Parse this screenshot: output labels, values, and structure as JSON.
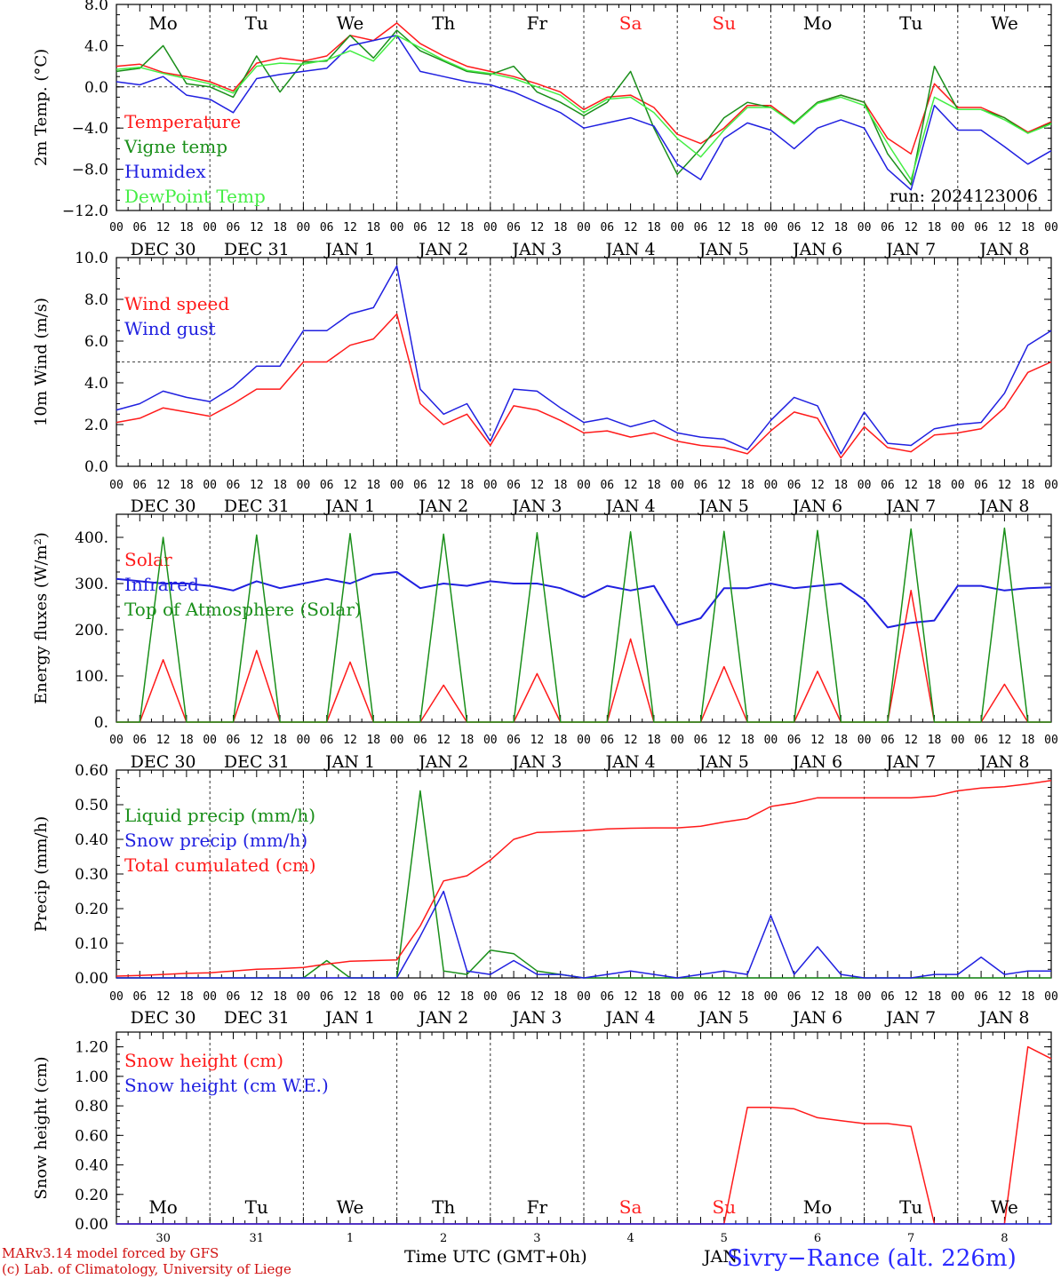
{
  "meteogram": {
    "station": "Sivry−Rance (alt. 226m)",
    "run_label": "run: 2024123006",
    "footer_line1": "MARv3.14 model forced by GFS",
    "footer_line2": "(c) Lab. of Climatology, University of Liege",
    "time_axis_title": "Time UTC (GMT+0h)",
    "partial_label": "JAN",
    "hour_ticks": [
      "00",
      "06",
      "12",
      "18"
    ],
    "date_labels": [
      "DEC 30",
      "DEC 31",
      "JAN  1",
      "JAN  2",
      "JAN  3",
      "JAN  4",
      "JAN  5",
      "JAN  6",
      "JAN  7",
      "JAN  8"
    ],
    "day_names": [
      "Mo",
      "Tu",
      "We",
      "Th",
      "Fr",
      "Sa",
      "Su",
      "Mo",
      "Tu",
      "We"
    ],
    "day_name_colors": [
      "#000000",
      "#000000",
      "#000000",
      "#000000",
      "#000000",
      "#ff2020",
      "#ff2020",
      "#000000",
      "#000000",
      "#000000"
    ],
    "bottom_day_numbers": [
      "30",
      "31",
      "1",
      "2",
      "3",
      "4",
      "5",
      "6",
      "7",
      "8"
    ]
  },
  "chart_data": [
    {
      "type": "line",
      "ylabel": "2m Temp. (°C)",
      "ylim": [
        -12,
        8
      ],
      "yticks": [
        "8.0",
        "4.0",
        "0.0",
        "−4.0",
        "−8.0",
        "−12.0"
      ],
      "ytick_values": [
        8,
        4,
        0,
        -4,
        -8,
        -12
      ],
      "reference_line": 0,
      "x_hours": [
        0,
        6,
        12,
        18,
        24,
        30,
        36,
        42,
        48,
        54,
        60,
        66,
        72,
        78,
        84,
        90,
        96,
        102,
        108,
        114,
        120,
        126,
        132,
        138,
        144,
        150,
        156,
        162,
        168,
        174,
        180,
        186,
        192,
        198,
        204,
        210,
        216,
        222,
        228,
        234,
        240
      ],
      "series": [
        {
          "name": "Temperature",
          "color": "#ff1a1a",
          "values": [
            2.0,
            2.2,
            1.4,
            1.0,
            0.5,
            -0.4,
            2.3,
            2.8,
            2.5,
            3.0,
            5.0,
            4.5,
            6.2,
            4.2,
            3.0,
            2.0,
            1.5,
            1.0,
            0.3,
            -0.5,
            -2.2,
            -1.0,
            -0.8,
            -2.0,
            -4.6,
            -5.5,
            -4.0,
            -1.8,
            -1.8,
            -3.5,
            -1.5,
            -0.8,
            -1.5,
            -5.0,
            -6.5,
            0.3,
            -2.0,
            -2.0,
            -3.0,
            -4.4,
            -3.4
          ]
        },
        {
          "name": "Vigne temp",
          "color": "#1a8f1a",
          "values": [
            1.5,
            1.8,
            4.0,
            0.3,
            0.0,
            -1.0,
            3.0,
            -0.5,
            2.4,
            2.5,
            5.0,
            2.8,
            5.5,
            3.5,
            2.5,
            1.5,
            1.2,
            2.0,
            -0.5,
            -1.5,
            -2.8,
            -1.5,
            1.5,
            -4.0,
            -8.5,
            -6.0,
            -3.0,
            -1.5,
            -2.0,
            -3.5,
            -1.5,
            -0.8,
            -1.5,
            -6.5,
            -9.5,
            2.0,
            -2.2,
            -2.2,
            -3.0,
            -4.5,
            -3.5
          ]
        },
        {
          "name": "Humidex",
          "color": "#2020e0",
          "values": [
            0.5,
            0.2,
            1.0,
            -0.8,
            -1.2,
            -2.5,
            0.8,
            1.2,
            1.5,
            1.8,
            4.0,
            4.5,
            5.0,
            1.5,
            1.0,
            0.5,
            0.2,
            -0.5,
            -1.5,
            -2.5,
            -4.0,
            -3.5,
            -3.0,
            -3.8,
            -7.5,
            -9.0,
            -5.0,
            -3.5,
            -4.2,
            -6.0,
            -4.0,
            -3.2,
            -4.0,
            -8.0,
            -10.0,
            -1.8,
            -4.2,
            -4.2,
            -5.8,
            -7.5,
            -6.2
          ]
        },
        {
          "name": "DewPoint Temp",
          "color": "#44ee44",
          "values": [
            1.7,
            1.9,
            1.3,
            0.8,
            0.3,
            -0.6,
            2.0,
            2.3,
            2.2,
            2.6,
            3.5,
            2.5,
            5.0,
            3.8,
            2.6,
            1.6,
            1.3,
            0.8,
            0.0,
            -0.8,
            -2.5,
            -1.2,
            -1.0,
            -2.5,
            -5.0,
            -6.8,
            -4.2,
            -2.0,
            -2.0,
            -3.6,
            -1.6,
            -1.0,
            -1.8,
            -5.5,
            -9.0,
            -1.0,
            -2.2,
            -2.2,
            -3.2,
            -4.5,
            -3.6
          ]
        }
      ]
    },
    {
      "type": "line",
      "ylabel": "10m Wind (m/s)",
      "ylim": [
        0,
        10
      ],
      "yticks": [
        "10.0",
        "8.0",
        "6.0",
        "4.0",
        "2.0",
        "0.0"
      ],
      "ytick_values": [
        10,
        8,
        6,
        4,
        2,
        0
      ],
      "reference_line": 5,
      "x_hours": [
        0,
        6,
        12,
        18,
        24,
        30,
        36,
        42,
        48,
        54,
        60,
        66,
        72,
        78,
        84,
        90,
        96,
        102,
        108,
        114,
        120,
        126,
        132,
        138,
        144,
        150,
        156,
        162,
        168,
        174,
        180,
        186,
        192,
        198,
        204,
        210,
        216,
        222,
        228,
        234,
        240
      ],
      "series": [
        {
          "name": "Wind speed",
          "color": "#ff1a1a",
          "values": [
            2.1,
            2.3,
            2.8,
            2.6,
            2.4,
            3.0,
            3.7,
            3.7,
            5.0,
            5.0,
            5.8,
            6.1,
            7.3,
            3.0,
            2.0,
            2.5,
            1.0,
            2.9,
            2.7,
            2.2,
            1.6,
            1.7,
            1.4,
            1.6,
            1.2,
            1.0,
            0.9,
            0.6,
            1.7,
            2.6,
            2.3,
            0.4,
            1.9,
            0.9,
            0.7,
            1.5,
            1.6,
            1.8,
            2.8,
            4.5,
            5.0
          ]
        },
        {
          "name": "Wind gust",
          "color": "#2020e0",
          "values": [
            2.7,
            3.0,
            3.6,
            3.3,
            3.1,
            3.8,
            4.8,
            4.8,
            6.5,
            6.5,
            7.3,
            7.6,
            9.6,
            3.7,
            2.5,
            3.0,
            1.2,
            3.7,
            3.6,
            2.8,
            2.1,
            2.3,
            1.9,
            2.2,
            1.6,
            1.4,
            1.3,
            0.8,
            2.2,
            3.3,
            2.9,
            0.6,
            2.6,
            1.1,
            1.0,
            1.8,
            2.0,
            2.1,
            3.5,
            5.8,
            6.5
          ]
        }
      ]
    },
    {
      "type": "line",
      "ylabel": "Energy fluxes (W/m²)",
      "ylim": [
        0,
        450
      ],
      "yticks": [
        "400.",
        "300.",
        "200.",
        "100.",
        "0."
      ],
      "ytick_values": [
        400,
        300,
        200,
        100,
        0
      ],
      "reference_line": null,
      "x_hours": [
        0,
        6,
        12,
        18,
        24,
        30,
        36,
        42,
        48,
        54,
        60,
        66,
        72,
        78,
        84,
        90,
        96,
        102,
        108,
        114,
        120,
        126,
        132,
        138,
        144,
        150,
        156,
        162,
        168,
        174,
        180,
        186,
        192,
        198,
        204,
        210,
        216,
        222,
        228,
        234,
        240
      ],
      "series": [
        {
          "name": "Solar",
          "color": "#ff1a1a",
          "values": [
            0,
            0,
            135,
            0,
            0,
            0,
            155,
            0,
            0,
            0,
            130,
            0,
            0,
            0,
            80,
            0,
            0,
            0,
            105,
            0,
            0,
            0,
            180,
            0,
            0,
            0,
            120,
            0,
            0,
            0,
            110,
            0,
            0,
            0,
            285,
            0,
            0,
            0,
            82,
            0,
            0
          ]
        },
        {
          "name": "Infrared",
          "color": "#2020e0",
          "values": [
            310,
            305,
            300,
            300,
            295,
            285,
            305,
            290,
            300,
            310,
            300,
            320,
            325,
            290,
            300,
            295,
            305,
            300,
            300,
            290,
            270,
            295,
            285,
            295,
            210,
            225,
            290,
            290,
            300,
            290,
            295,
            300,
            265,
            205,
            215,
            220,
            295,
            295,
            285,
            290,
            292
          ]
        },
        {
          "name": "Top of Atmosphere (Solar)",
          "color": "#1a8f1a",
          "values": [
            0,
            0,
            400,
            0,
            0,
            0,
            405,
            0,
            0,
            0,
            408,
            0,
            0,
            0,
            407,
            0,
            0,
            0,
            410,
            0,
            0,
            0,
            412,
            0,
            0,
            0,
            413,
            0,
            0,
            0,
            415,
            0,
            0,
            0,
            418,
            0,
            0,
            0,
            420,
            0,
            0
          ]
        }
      ]
    },
    {
      "type": "line",
      "ylabel": "Precip (mm/h)",
      "ylim": [
        0,
        0.6
      ],
      "yticks": [
        "0.60",
        "0.50",
        "0.40",
        "0.30",
        "0.20",
        "0.10",
        "0.00"
      ],
      "ytick_values": [
        0.6,
        0.5,
        0.4,
        0.3,
        0.2,
        0.1,
        0
      ],
      "reference_line": null,
      "x_hours": [
        0,
        6,
        12,
        18,
        24,
        30,
        36,
        42,
        48,
        54,
        60,
        66,
        72,
        78,
        84,
        90,
        96,
        102,
        108,
        114,
        120,
        126,
        132,
        138,
        144,
        150,
        156,
        162,
        168,
        174,
        180,
        186,
        192,
        198,
        204,
        210,
        216,
        222,
        228,
        234,
        240
      ],
      "series": [
        {
          "name": "Liquid precip (mm/h)",
          "color": "#1a8f1a",
          "values": [
            0,
            0,
            0,
            0,
            0,
            0,
            0,
            0,
            0,
            0.05,
            0,
            0,
            0,
            0.54,
            0.02,
            0.01,
            0.08,
            0.07,
            0.02,
            0.01,
            0,
            0,
            0,
            0,
            0,
            0,
            0,
            0,
            0,
            0,
            0,
            0,
            0,
            0,
            0,
            0,
            0,
            0,
            0,
            0,
            0
          ]
        },
        {
          "name": "Snow precip (mm/h)",
          "color": "#2020e0",
          "values": [
            0,
            0,
            0,
            0,
            0,
            0,
            0,
            0,
            0,
            0,
            0,
            0,
            0,
            0.12,
            0.25,
            0.02,
            0.01,
            0.05,
            0.01,
            0.01,
            0,
            0.01,
            0.02,
            0.01,
            0,
            0.01,
            0.02,
            0.01,
            0.18,
            0.01,
            0.09,
            0.01,
            0,
            0,
            0,
            0.01,
            0.01,
            0.06,
            0.01,
            0.02,
            0.02
          ]
        },
        {
          "name": "Total cumulated (cm)",
          "color": "#ff1a1a",
          "values": [
            0.005,
            0.007,
            0.01,
            0.013,
            0.015,
            0.02,
            0.025,
            0.027,
            0.03,
            0.04,
            0.048,
            0.05,
            0.052,
            0.15,
            0.28,
            0.295,
            0.34,
            0.4,
            0.42,
            0.422,
            0.425,
            0.43,
            0.432,
            0.433,
            0.433,
            0.438,
            0.45,
            0.46,
            0.495,
            0.505,
            0.52,
            0.52,
            0.52,
            0.52,
            0.52,
            0.525,
            0.54,
            0.548,
            0.552,
            0.56,
            0.57
          ]
        }
      ]
    },
    {
      "type": "line",
      "ylabel": "Snow height (cm)",
      "ylim": [
        0,
        1.3
      ],
      "yticks": [
        "1.20",
        "1.00",
        "0.80",
        "0.60",
        "0.40",
        "0.20",
        "0.00"
      ],
      "ytick_values": [
        1.2,
        1.0,
        0.8,
        0.6,
        0.4,
        0.2,
        0
      ],
      "reference_line": null,
      "x_hours": [
        0,
        6,
        12,
        18,
        24,
        30,
        36,
        42,
        48,
        54,
        60,
        66,
        72,
        78,
        84,
        90,
        96,
        102,
        108,
        114,
        120,
        126,
        132,
        138,
        144,
        150,
        156,
        162,
        168,
        174,
        180,
        186,
        192,
        198,
        204,
        210,
        216,
        222,
        228,
        234,
        240
      ],
      "series": [
        {
          "name": "Snow height (cm)",
          "color": "#ff1a1a",
          "values": [
            0,
            0,
            0,
            0,
            0,
            0,
            0,
            0,
            0,
            0,
            0,
            0,
            0,
            0,
            0,
            0,
            0,
            0,
            0,
            0,
            0,
            0,
            0,
            0,
            0,
            0,
            0,
            0.79,
            0.79,
            0.78,
            0.72,
            0.7,
            0.68,
            0.68,
            0.66,
            0,
            0,
            0,
            0,
            1.2,
            1.12
          ]
        },
        {
          "name": "Snow height (cm W.E.)",
          "color": "#2020e0",
          "values": [
            0,
            0,
            0,
            0,
            0,
            0,
            0,
            0,
            0,
            0,
            0,
            0,
            0,
            0,
            0,
            0,
            0,
            0,
            0,
            0,
            0,
            0,
            0,
            0,
            0,
            0,
            0,
            0,
            0,
            0,
            0,
            0,
            0,
            0,
            0,
            0,
            0,
            0,
            0,
            0,
            0
          ]
        }
      ]
    }
  ]
}
